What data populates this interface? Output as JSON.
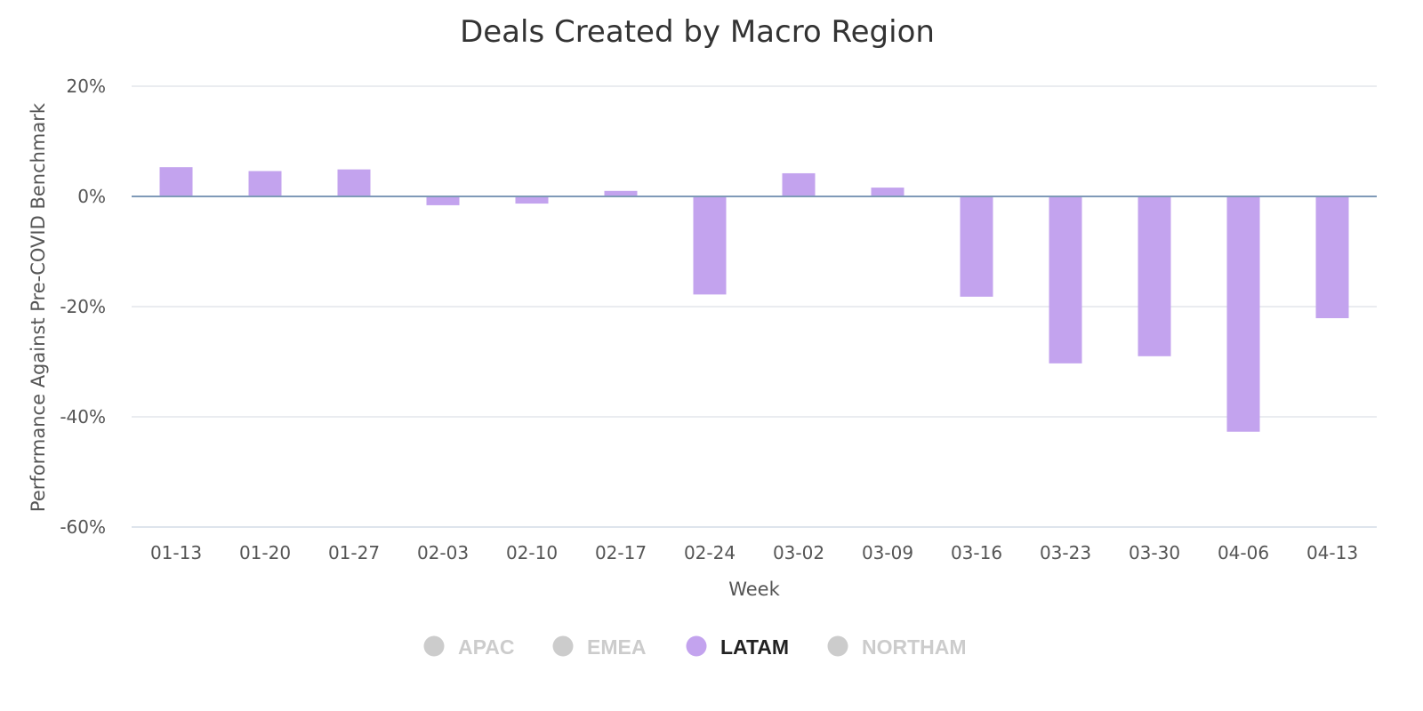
{
  "chart_data": {
    "type": "bar",
    "title": "Deals Created by Macro Region",
    "xlabel": "Week",
    "ylabel": "Performance Against Pre-COVID Benchmark",
    "ylim": [
      -60,
      20
    ],
    "yticks": [
      20,
      0,
      -20,
      -40,
      -60
    ],
    "ytick_labels": [
      "20%",
      "0%",
      "-20%",
      "-40%",
      "-60%"
    ],
    "categories": [
      "01-13",
      "01-20",
      "01-27",
      "02-03",
      "02-10",
      "02-17",
      "02-24",
      "03-02",
      "03-09",
      "03-16",
      "03-23",
      "03-30",
      "04-06",
      "04-13"
    ],
    "series": [
      {
        "name": "LATAM",
        "color": "#c3a3ee",
        "values": [
          5.3,
          4.6,
          4.9,
          -1.6,
          -1.3,
          1.0,
          -17.8,
          4.2,
          1.6,
          -18.2,
          -30.3,
          -29.0,
          -42.7,
          -22.1
        ]
      }
    ],
    "grid": true,
    "legend_position": "bottom-center",
    "legend": [
      {
        "label": "APAC",
        "active": false
      },
      {
        "label": "EMEA",
        "active": false
      },
      {
        "label": "LATAM",
        "active": true
      },
      {
        "label": "NORTHAM",
        "active": false
      }
    ],
    "colors": {
      "grid": "#dde1e7",
      "baseline": "#7f9ab8",
      "inactive_legend": "#cccccc",
      "active_legend_text": "#222222"
    }
  }
}
